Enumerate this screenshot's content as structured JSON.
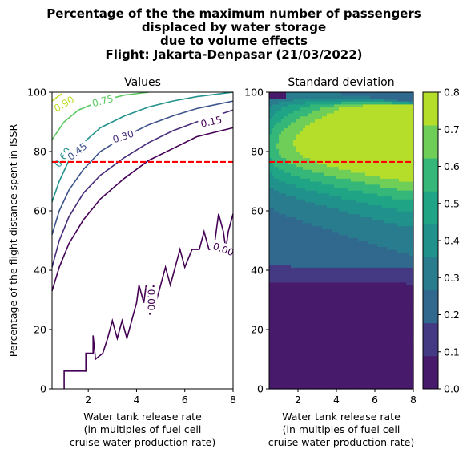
{
  "figure": {
    "suptitle_lines": [
      "Percentage of the the maximum number of passengers",
      "displaced by water storage",
      "due to volume effects",
      "Flight: Jakarta-Denpasar (21/03/2022)"
    ]
  },
  "chart_data": [
    {
      "type": "contour",
      "title": "Values",
      "xlabel_lines": [
        "Water tank release rate",
        "(in multiples of fuel cell",
        "cruise water production rate)"
      ],
      "ylabel": "Percentage of the flight distance spent in ISSR",
      "xlim": [
        0.5,
        8
      ],
      "ylim": [
        0,
        100
      ],
      "xticks": [
        2,
        4,
        6,
        8
      ],
      "yticks": [
        0,
        20,
        40,
        60,
        80,
        100
      ],
      "threshold_line": {
        "y": 76.5,
        "color": "#ff0000",
        "style": "dashed"
      },
      "contours": [
        {
          "level": "0.90",
          "color": "#bddf26",
          "points": [
            [
              0.5,
              97
            ],
            [
              0.9,
              99.5
            ]
          ]
        },
        {
          "level": "0.75",
          "color": "#5ec962",
          "points": [
            [
              0.5,
              84
            ],
            [
              1.0,
              90
            ],
            [
              1.6,
              94
            ],
            [
              2.5,
              97
            ],
            [
              3.5,
              99
            ],
            [
              4.5,
              100
            ]
          ]
        },
        {
          "level": "0.60",
          "color": "#21918c",
          "points": [
            [
              0.5,
              63
            ],
            [
              0.8,
              70
            ],
            [
              1.2,
              77
            ],
            [
              1.8,
              83
            ],
            [
              2.5,
              88
            ],
            [
              3.5,
              92
            ],
            [
              4.5,
              95
            ],
            [
              5.5,
              97
            ],
            [
              6.5,
              98.5
            ],
            [
              8,
              100
            ]
          ]
        },
        {
          "level": "0.45",
          "color": "#3b528b",
          "points": [
            [
              0.5,
              52
            ],
            [
              0.8,
              60
            ],
            [
              1.2,
              67
            ],
            [
              1.8,
              74
            ],
            [
              2.5,
              80
            ],
            [
              3.5,
              85
            ],
            [
              4.5,
              89
            ],
            [
              5.5,
              92
            ],
            [
              6.5,
              94.5
            ],
            [
              8,
              97
            ]
          ]
        },
        {
          "level": "0.30",
          "color": "#472c7a",
          "points": [
            [
              0.5,
              41
            ],
            [
              0.8,
              50
            ],
            [
              1.2,
              58
            ],
            [
              1.8,
              66
            ],
            [
              2.5,
              72
            ],
            [
              3.5,
              78
            ],
            [
              4.5,
              83
            ],
            [
              5.5,
              87
            ],
            [
              6.5,
              90
            ],
            [
              8,
              94
            ]
          ]
        },
        {
          "level": "0.15",
          "color": "#440154",
          "points": [
            [
              0.5,
              33
            ],
            [
              0.8,
              41
            ],
            [
              1.2,
              49
            ],
            [
              1.8,
              57
            ],
            [
              2.5,
              64
            ],
            [
              3.5,
              71
            ],
            [
              4.5,
              77
            ],
            [
              5.5,
              81
            ],
            [
              6.5,
              85
            ],
            [
              8,
              88
            ]
          ]
        },
        {
          "level": "0.00",
          "color": "#440154",
          "points": [
            [
              1.0,
              0
            ],
            [
              1.0,
              6
            ],
            [
              1.9,
              6
            ],
            [
              1.9,
              12
            ],
            [
              2.2,
              12
            ],
            [
              2.2,
              18
            ],
            [
              2.3,
              10
            ],
            [
              2.6,
              12
            ],
            [
              2.8,
              17
            ],
            [
              3.0,
              23
            ],
            [
              3.2,
              17
            ],
            [
              3.4,
              23
            ],
            [
              3.6,
              17
            ],
            [
              3.8,
              23
            ],
            [
              4.0,
              29
            ],
            [
              4.1,
              35
            ],
            [
              4.3,
              29
            ],
            [
              4.4,
              35
            ],
            [
              4.55,
              25
            ],
            [
              4.7,
              35
            ],
            [
              4.8,
              29
            ],
            [
              5.0,
              35
            ],
            [
              5.2,
              41
            ],
            [
              5.4,
              35
            ],
            [
              5.6,
              41
            ],
            [
              5.8,
              47
            ],
            [
              6.0,
              41
            ],
            [
              6.3,
              47
            ],
            [
              6.6,
              47
            ],
            [
              6.8,
              53
            ],
            [
              7.0,
              47
            ],
            [
              7.2,
              47
            ],
            [
              7.4,
              59
            ],
            [
              7.6,
              53
            ],
            [
              7.7,
              47
            ],
            [
              7.8,
              53
            ],
            [
              8,
              59
            ]
          ]
        }
      ]
    },
    {
      "type": "heatmap",
      "title": "Standard deviation",
      "xlabel_lines": [
        "Water tank release rate",
        "(in multiples of fuel cell",
        "cruise water production rate)"
      ],
      "xlim": [
        0.5,
        8
      ],
      "ylim": [
        0,
        100
      ],
      "xticks": [
        2,
        4,
        6,
        8
      ],
      "yticks": [
        0,
        20,
        40,
        60,
        80,
        100
      ],
      "threshold_line": {
        "y": 76.5,
        "color": "#ff0000",
        "style": "dashed"
      },
      "colorbar": {
        "min": 0.0,
        "max": 0.8,
        "ticks": [
          "0.0",
          "0.1",
          "0.2",
          "0.3",
          "0.4",
          "0.5",
          "0.6",
          "0.7",
          "0.8"
        ],
        "colors": [
          "#481a6c",
          "#443983",
          "#31688e",
          "#287c8e",
          "#21918c",
          "#20a486",
          "#35b779",
          "#6ece58",
          "#b5de2b"
        ]
      }
    }
  ]
}
